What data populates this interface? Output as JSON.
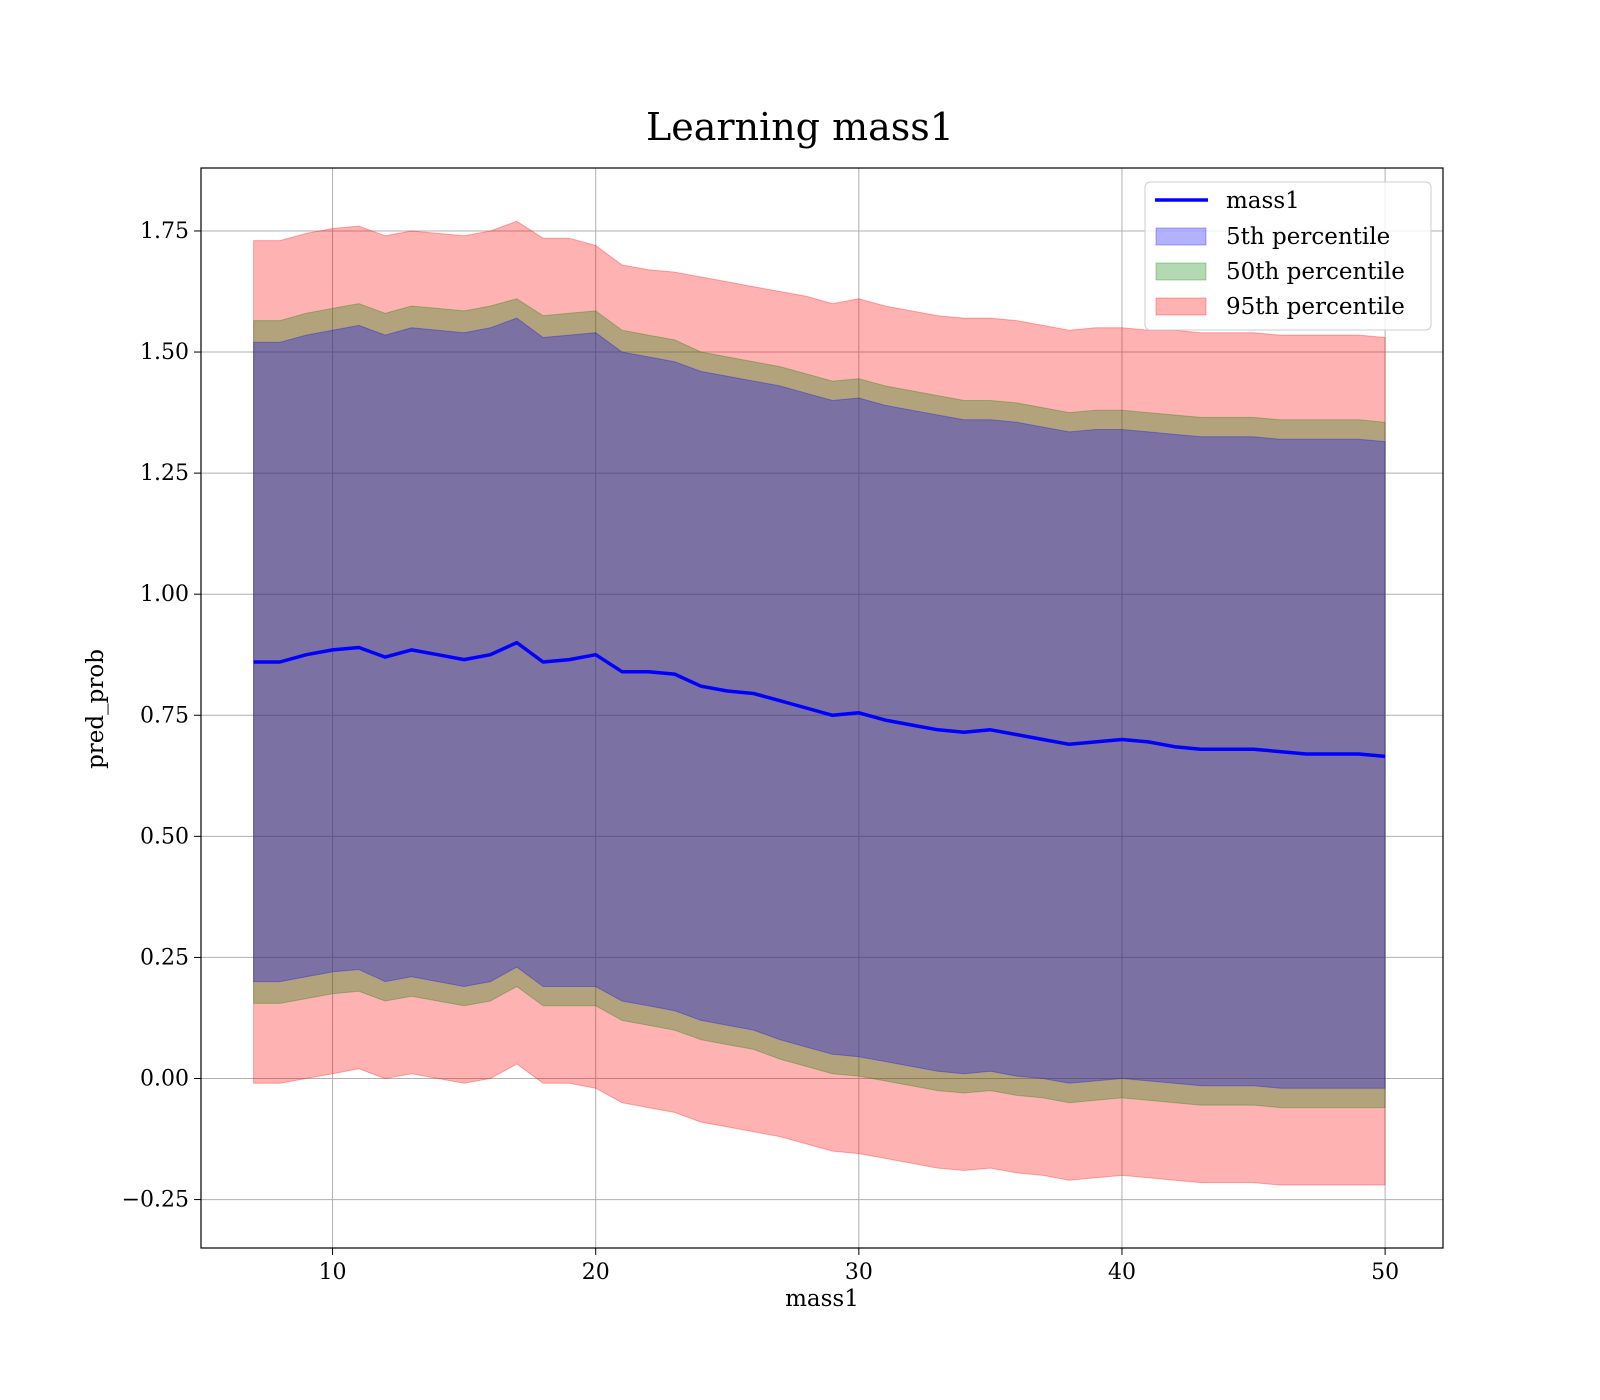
{
  "chart_data": {
    "type": "area",
    "title": "Learning mass1",
    "xlabel": "mass1",
    "ylabel": "pred_prob",
    "xlim": [
      5,
      52.2
    ],
    "ylim": [
      -0.35,
      1.88
    ],
    "x_ticks": [
      10,
      20,
      30,
      40,
      50
    ],
    "x_tick_labels": [
      "10",
      "20",
      "30",
      "40",
      "50"
    ],
    "y_ticks": [
      -0.25,
      0,
      0.25,
      0.5,
      0.75,
      1.0,
      1.25,
      1.5,
      1.75
    ],
    "y_tick_labels": [
      "−0.25",
      "0.00",
      "0.25",
      "0.50",
      "0.75",
      "1.00",
      "1.25",
      "1.50",
      "1.75"
    ],
    "grid": true,
    "legend_position": "top-right",
    "x": [
      7,
      8,
      9,
      10,
      11,
      12,
      13,
      14,
      15,
      16,
      17,
      18,
      19,
      20,
      21,
      22,
      23,
      24,
      25,
      26,
      27,
      28,
      29,
      30,
      31,
      32,
      33,
      34,
      35,
      36,
      37,
      38,
      39,
      40,
      41,
      42,
      43,
      44,
      45,
      46,
      47,
      48,
      49,
      50
    ],
    "line": {
      "name": "mass1",
      "color": "#0000ff",
      "values": [
        0.86,
        0.86,
        0.875,
        0.885,
        0.89,
        0.87,
        0.885,
        0.875,
        0.865,
        0.875,
        0.9,
        0.86,
        0.865,
        0.875,
        0.84,
        0.84,
        0.835,
        0.81,
        0.8,
        0.795,
        0.78,
        0.765,
        0.75,
        0.755,
        0.74,
        0.73,
        0.72,
        0.715,
        0.72,
        0.71,
        0.7,
        0.69,
        0.695,
        0.7,
        0.695,
        0.685,
        0.68,
        0.68,
        0.68,
        0.675,
        0.67,
        0.67,
        0.67,
        0.665
      ]
    },
    "series": [
      {
        "name": "5th percentile",
        "color": "#0000ff",
        "lower": [
          0.2,
          0.2,
          0.21,
          0.22,
          0.225,
          0.2,
          0.21,
          0.2,
          0.19,
          0.2,
          0.23,
          0.19,
          0.19,
          0.19,
          0.16,
          0.15,
          0.14,
          0.12,
          0.11,
          0.1,
          0.08,
          0.065,
          0.05,
          0.045,
          0.035,
          0.025,
          0.015,
          0.01,
          0.015,
          0.005,
          0.0,
          -0.01,
          -0.005,
          0.0,
          -0.005,
          -0.01,
          -0.015,
          -0.015,
          -0.015,
          -0.02,
          -0.02,
          -0.02,
          -0.02,
          -0.02
        ],
        "upper": [
          1.52,
          1.52,
          1.535,
          1.545,
          1.555,
          1.535,
          1.55,
          1.545,
          1.54,
          1.55,
          1.57,
          1.53,
          1.535,
          1.54,
          1.5,
          1.49,
          1.48,
          1.46,
          1.45,
          1.44,
          1.43,
          1.415,
          1.4,
          1.405,
          1.39,
          1.38,
          1.37,
          1.36,
          1.36,
          1.355,
          1.345,
          1.335,
          1.34,
          1.34,
          1.335,
          1.33,
          1.325,
          1.325,
          1.325,
          1.32,
          1.32,
          1.32,
          1.32,
          1.315
        ]
      },
      {
        "name": "50th percentile",
        "color": "#008000",
        "lower": [
          0.155,
          0.155,
          0.165,
          0.175,
          0.18,
          0.16,
          0.17,
          0.16,
          0.15,
          0.16,
          0.19,
          0.15,
          0.15,
          0.15,
          0.12,
          0.11,
          0.1,
          0.08,
          0.07,
          0.06,
          0.04,
          0.025,
          0.01,
          0.005,
          -0.005,
          -0.015,
          -0.025,
          -0.03,
          -0.025,
          -0.035,
          -0.04,
          -0.05,
          -0.045,
          -0.04,
          -0.045,
          -0.05,
          -0.055,
          -0.055,
          -0.055,
          -0.06,
          -0.06,
          -0.06,
          -0.06,
          -0.06
        ],
        "upper": [
          1.565,
          1.565,
          1.58,
          1.59,
          1.6,
          1.58,
          1.595,
          1.59,
          1.585,
          1.595,
          1.61,
          1.575,
          1.58,
          1.585,
          1.545,
          1.535,
          1.525,
          1.5,
          1.49,
          1.48,
          1.47,
          1.455,
          1.44,
          1.445,
          1.43,
          1.42,
          1.41,
          1.4,
          1.4,
          1.395,
          1.385,
          1.375,
          1.38,
          1.38,
          1.375,
          1.37,
          1.365,
          1.365,
          1.365,
          1.36,
          1.36,
          1.36,
          1.36,
          1.355
        ]
      },
      {
        "name": "95th percentile",
        "color": "#ff0000",
        "lower": [
          -0.01,
          -0.01,
          0.0,
          0.01,
          0.02,
          0.0,
          0.01,
          0.0,
          -0.01,
          0.0,
          0.03,
          -0.01,
          -0.01,
          -0.02,
          -0.05,
          -0.06,
          -0.07,
          -0.09,
          -0.1,
          -0.11,
          -0.12,
          -0.135,
          -0.15,
          -0.155,
          -0.165,
          -0.175,
          -0.185,
          -0.19,
          -0.185,
          -0.195,
          -0.2,
          -0.21,
          -0.205,
          -0.2,
          -0.205,
          -0.21,
          -0.215,
          -0.215,
          -0.215,
          -0.22,
          -0.22,
          -0.22,
          -0.22,
          -0.22
        ],
        "upper": [
          1.73,
          1.73,
          1.745,
          1.755,
          1.76,
          1.74,
          1.75,
          1.745,
          1.74,
          1.75,
          1.77,
          1.735,
          1.735,
          1.72,
          1.68,
          1.67,
          1.665,
          1.655,
          1.645,
          1.635,
          1.625,
          1.615,
          1.6,
          1.61,
          1.595,
          1.585,
          1.575,
          1.57,
          1.57,
          1.565,
          1.555,
          1.545,
          1.55,
          1.55,
          1.545,
          1.545,
          1.54,
          1.54,
          1.54,
          1.535,
          1.535,
          1.535,
          1.535,
          1.53
        ]
      }
    ]
  }
}
